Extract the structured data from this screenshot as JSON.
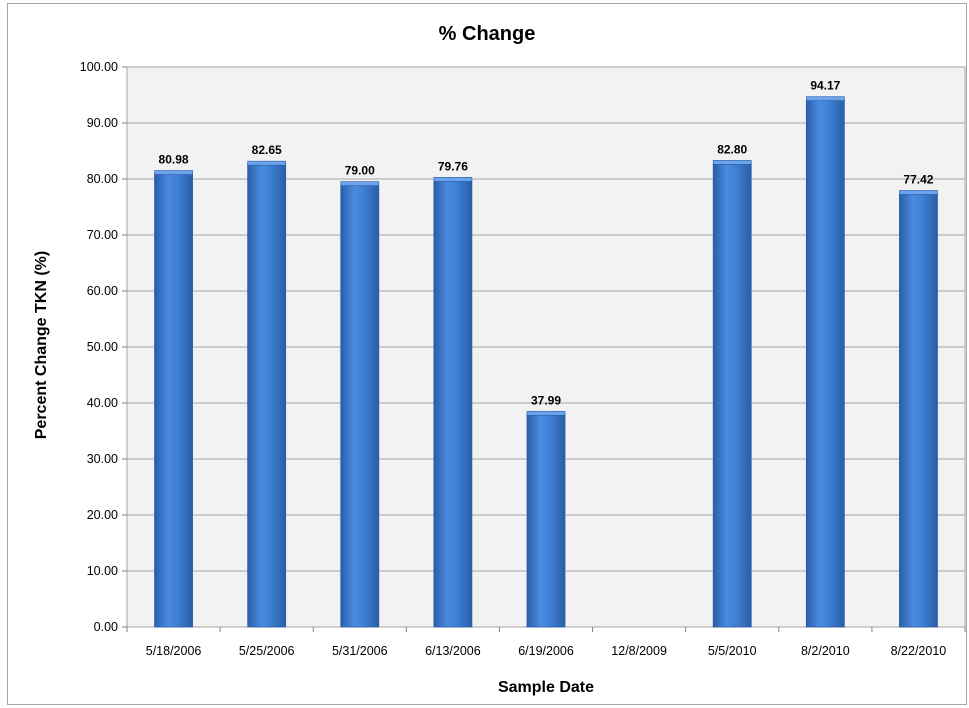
{
  "chart_data": {
    "type": "bar",
    "title": "% Change",
    "xlabel": "Sample Date",
    "ylabel": "Percent Change TKN (%)",
    "categories": [
      "5/18/2006",
      "5/25/2006",
      "5/31/2006",
      "6/13/2006",
      "6/19/2006",
      "12/8/2009",
      "5/5/2010",
      "8/2/2010",
      "8/22/2010"
    ],
    "values": [
      80.98,
      82.65,
      79.0,
      79.76,
      37.99,
      null,
      82.8,
      94.17,
      77.42
    ],
    "data_labels": [
      "80.98",
      "82.65",
      "79.00",
      "79.76",
      "37.99",
      "",
      "82.80",
      "94.17",
      "77.42"
    ],
    "ylim": [
      0,
      100
    ],
    "yticks": [
      "0.00",
      "10.00",
      "20.00",
      "30.00",
      "40.00",
      "50.00",
      "60.00",
      "70.00",
      "80.00",
      "90.00",
      "100.00"
    ],
    "grid": true,
    "legend": "none",
    "colors": {
      "bar": "#3f7fd4",
      "bar_dark": "#2a5ea8",
      "bar_light": "#6da3ea",
      "plot_bg": "#f2f2f2",
      "grid": "#a6a6a6"
    }
  }
}
